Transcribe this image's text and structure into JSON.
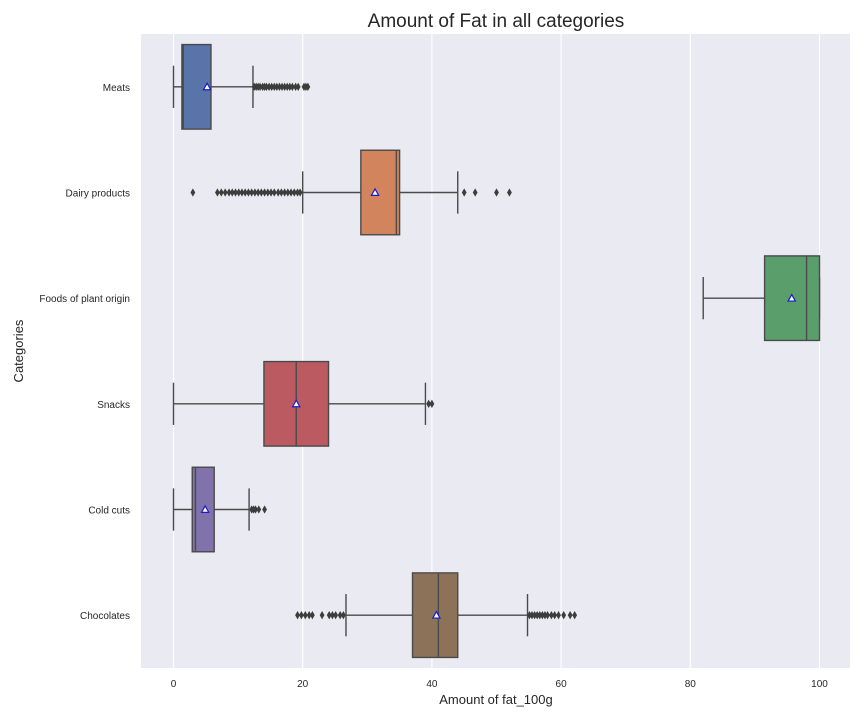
{
  "chart_data": {
    "type": "boxplot",
    "orientation": "horizontal",
    "title": "Amount of Fat in all categories",
    "xlabel": "Amount of fat_100g",
    "ylabel": "Categories",
    "xlim": [
      -5,
      105
    ],
    "xticks": [
      0,
      20,
      40,
      60,
      80,
      100
    ],
    "grid": true,
    "mean_marker": "triangle",
    "categories": [
      "Meats",
      "Dairy products",
      "Foods of plant origin",
      "Snacks",
      "Cold cuts",
      "Chocolates"
    ],
    "boxes": [
      {
        "category": "Meats",
        "color": "#5874a8",
        "whisker_low": 0,
        "q1": 1.3,
        "median": 1.5,
        "q3": 5.8,
        "whisker_high": 12.3,
        "mean": 5.2,
        "outliers": [
          12.5,
          12.8,
          13.1,
          13.4,
          13.8,
          14.1,
          14.4,
          14.8,
          15.2,
          15.6,
          16.0,
          16.4,
          16.8,
          17.2,
          17.6,
          18.0,
          18.4,
          18.9,
          19.3,
          20.2,
          20.5,
          20.8
        ]
      },
      {
        "category": "Dairy products",
        "color": "#d2845c",
        "whisker_low": 20,
        "q1": 29,
        "median": 34.5,
        "q3": 35,
        "whisker_high": 44,
        "mean": 31.2,
        "outliers": [
          3,
          6.8,
          7.4,
          8.0,
          8.6,
          9.1,
          9.6,
          10.1,
          10.6,
          11.1,
          11.6,
          12.1,
          12.6,
          13.1,
          13.6,
          14.1,
          14.6,
          15.1,
          15.6,
          16.2,
          16.7,
          17.2,
          17.7,
          18.2,
          18.7,
          19.2,
          19.6,
          45,
          46.7,
          50,
          52
        ]
      },
      {
        "category": "Foods of plant origin",
        "color": "#5a9e6b",
        "whisker_low": 82,
        "q1": 91.5,
        "median": 98,
        "q3": 100,
        "whisker_high": 100,
        "mean": 95.7,
        "outliers": []
      },
      {
        "category": "Snacks",
        "color": "#bb5a60",
        "whisker_low": 0,
        "q1": 14,
        "median": 19,
        "q3": 24,
        "whisker_high": 39,
        "mean": 19,
        "outliers": [
          39.5,
          40
        ]
      },
      {
        "category": "Cold cuts",
        "color": "#8272ac",
        "whisker_low": 0,
        "q1": 2.9,
        "median": 3.4,
        "q3": 6.3,
        "whisker_high": 11.7,
        "mean": 4.9,
        "outliers": [
          12.1,
          12.4,
          12.7,
          13.2,
          14.1
        ]
      },
      {
        "category": "Chocolates",
        "color": "#8c7259",
        "whisker_low": 26.7,
        "q1": 37,
        "median": 41,
        "q3": 44,
        "whisker_high": 54.8,
        "mean": 40.7,
        "outliers": [
          19.2,
          19.8,
          20.4,
          21,
          21.5,
          23,
          24.1,
          24.6,
          25.1,
          25.8,
          26.3,
          55.1,
          55.5,
          55.9,
          56.3,
          56.7,
          57.1,
          57.5,
          57.9,
          58.5,
          59,
          59.6,
          60.4,
          61.4,
          62.1
        ]
      }
    ]
  }
}
